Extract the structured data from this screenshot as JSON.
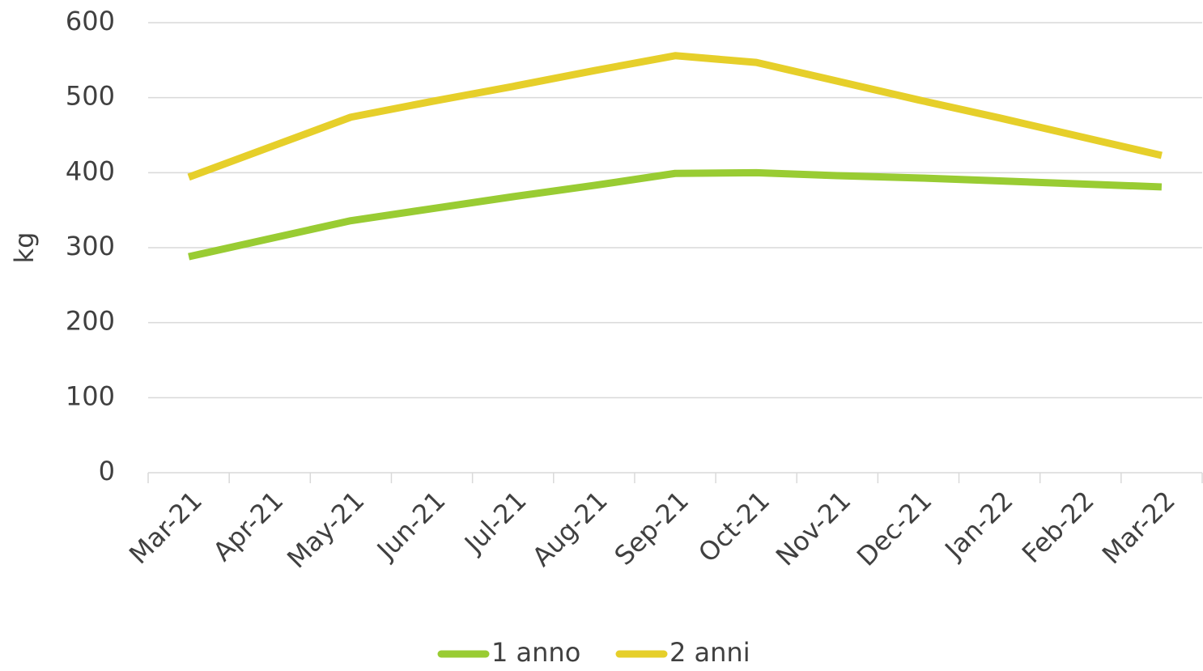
{
  "chart_data": {
    "type": "line",
    "y_label": "kg",
    "categories": [
      "Mar-21",
      "Apr-21",
      "May-21",
      "Jun-21",
      "Jul-21",
      "Aug-21",
      "Sep-21",
      "Oct-21",
      "Nov-21",
      "Dec-21",
      "Jan-22",
      "Feb-22",
      "Mar-22"
    ],
    "series": [
      {
        "name": "1 anno",
        "color": "#99cc33",
        "values": [
          288,
          312,
          336,
          352,
          368,
          383,
          399,
          400,
          396,
          393,
          389,
          385,
          381
        ]
      },
      {
        "name": "2 anni",
        "color": "#e6cf2a",
        "values": [
          394,
          434,
          474,
          495,
          515,
          536,
          556,
          547,
          522,
          497,
          473,
          448,
          423
        ]
      }
    ],
    "ylim": [
      0,
      600
    ],
    "yticks": [
      0,
      100,
      200,
      300,
      400,
      500,
      600
    ],
    "grid": true,
    "legend": "bottom"
  }
}
